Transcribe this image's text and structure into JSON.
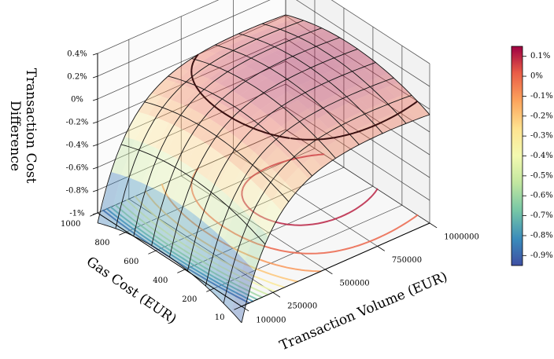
{
  "chart_data": {
    "type": "surface3d",
    "title": "",
    "xlabel": "Transaction Volume (EUR)",
    "ylabel": "Gas Cost (EUR)",
    "zlabel_lines": [
      "Transaction Cost",
      "Difference"
    ],
    "x_ticks": [
      "100000",
      "250000",
      "500000",
      "750000",
      "1000000"
    ],
    "x_tick_values": [
      100000,
      250000,
      500000,
      750000,
      1000000
    ],
    "y_ticks": [
      "10",
      "200",
      "400",
      "600",
      "800",
      "1000"
    ],
    "y_tick_values": [
      10,
      200,
      400,
      600,
      800,
      1000
    ],
    "z_ticks": [
      "0.4%",
      "0.2%",
      "0%",
      "-0.2%",
      "-0.4%",
      "-0.6%",
      "-0.8%",
      "-1%"
    ],
    "z_tick_values": [
      0.4,
      0.2,
      0,
      -0.2,
      -0.4,
      -0.6,
      -0.8,
      -1.0
    ],
    "xlim": [
      100000,
      1000000
    ],
    "ylim": [
      10,
      1000
    ],
    "zlim": [
      -1.0,
      0.4
    ],
    "grid": true,
    "colormap": "Spectral_r",
    "colorbar": {
      "ticks": [
        "0.1%",
        "0%",
        "-0.1%",
        "-0.2%",
        "-0.3%",
        "-0.4%",
        "-0.5%",
        "-0.6%",
        "-0.7%",
        "-0.8%",
        "-0.9%"
      ],
      "tick_values": [
        0.1,
        0.0,
        -0.1,
        -0.2,
        -0.3,
        -0.4,
        -0.5,
        -0.6,
        -0.7,
        -0.8,
        -0.9
      ],
      "range": [
        -0.95,
        0.15
      ],
      "placement": "right"
    },
    "zero_contour_on_surface": "dashed",
    "floor_contours": "projected contours of the surface onto the floor",
    "surface_range": [
      -0.95,
      0.15
    ]
  }
}
